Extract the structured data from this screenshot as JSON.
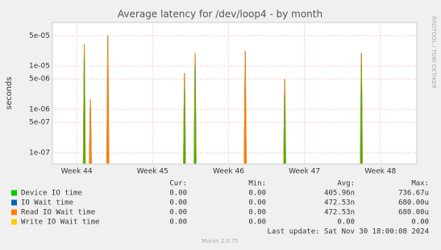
{
  "chart_data": {
    "type": "spike",
    "title": "Average latency for /dev/loop4 - by month",
    "y_label": "seconds",
    "side_text": "RRDTOOL / TOBI OETIKER",
    "log_scale": true,
    "grid": true,
    "xlim": [
      43.68,
      48.48
    ],
    "xticks": [
      {
        "value": 44,
        "label": "Week 44"
      },
      {
        "value": 45,
        "label": "Week 45"
      },
      {
        "value": 46,
        "label": "Week 46"
      },
      {
        "value": 47,
        "label": "Week 47"
      },
      {
        "value": 48,
        "label": "Week 48"
      }
    ],
    "ylim": [
      5.5e-08,
      0.0001
    ],
    "yticks": [
      {
        "value": 5e-05,
        "label": "5e-05"
      },
      {
        "value": 1e-05,
        "label": "1e-05"
      },
      {
        "value": 5e-06,
        "label": "5e-06"
      },
      {
        "value": 1e-06,
        "label": "1e-06"
      },
      {
        "value": 5e-07,
        "label": "5e-07"
      },
      {
        "value": 1e-07,
        "label": "1e-07"
      }
    ],
    "x": [
      44.1,
      44.18,
      44.41,
      45.42,
      45.56,
      46.22,
      46.74,
      47.75
    ],
    "series": [
      {
        "name": "IO Wait time",
        "color": "#0066b3",
        "values": [
          3.2e-05,
          1.7e-06,
          5e-05,
          6.8e-06,
          2e-05,
          2.2e-05,
          5e-06,
          2e-05
        ]
      },
      {
        "name": "Read IO Wait time",
        "color": "#ff8000",
        "values": [
          3.2e-05,
          1.7e-06,
          5e-05,
          6.8e-06,
          2e-05,
          2.2e-05,
          5e-06,
          2e-05
        ]
      },
      {
        "name": "Device IO time",
        "color": "#00cc00",
        "values": [
          1.5e-05,
          null,
          null,
          3e-06,
          1e-05,
          null,
          2e-06,
          1e-05
        ]
      },
      {
        "name": "Write IO Wait time",
        "color": "#ffcc00",
        "values": [
          null,
          null,
          null,
          null,
          null,
          null,
          null,
          null
        ]
      }
    ],
    "legend_header": [
      "Cur:",
      "Min:",
      "Avg:",
      "Max:"
    ],
    "legend_rows": [
      {
        "name": "Device IO time",
        "color": "#00cc00",
        "stats": [
          "0.00",
          "0.00",
          "405.96n",
          "736.67u"
        ]
      },
      {
        "name": "IO Wait time",
        "color": "#0066b3",
        "stats": [
          "0.00",
          "0.00",
          "472.53n",
          "680.00u"
        ]
      },
      {
        "name": "Read IO Wait time",
        "color": "#ff8000",
        "stats": [
          "0.00",
          "0.00",
          "472.53n",
          "680.00u"
        ]
      },
      {
        "name": "Write IO Wait time",
        "color": "#ffcc00",
        "stats": [
          "0.00",
          "0.00",
          "0.00",
          "0.00"
        ]
      }
    ],
    "last_update": "Last update: Sat Nov 30 18:00:08 2024",
    "footer": "Munin 2.0.75"
  }
}
